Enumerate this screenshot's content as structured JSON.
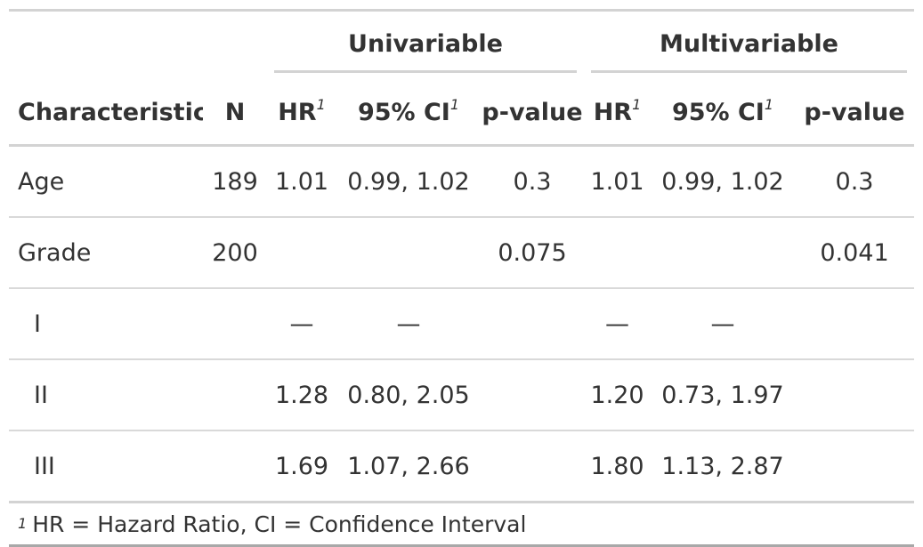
{
  "spanners": {
    "univariable": "Univariable",
    "multivariable": "Multivariable"
  },
  "columns": {
    "characteristic": "Characteristic",
    "n": "N",
    "hr": "HR",
    "ci": "95% CI",
    "pvalue": "p-value",
    "footnote_mark": "1"
  },
  "rows": [
    {
      "label": "Age",
      "n": "189",
      "uv_hr": "1.01",
      "uv_ci": "0.99, 1.02",
      "uv_p": "0.3",
      "mv_hr": "1.01",
      "mv_ci": "0.99, 1.02",
      "mv_p": "0.3"
    },
    {
      "label": "Grade",
      "n": "200",
      "uv_hr": "",
      "uv_ci": "",
      "uv_p": "0.075",
      "mv_hr": "",
      "mv_ci": "",
      "mv_p": "0.041"
    },
    {
      "label": "I",
      "n": "",
      "uv_hr": "—",
      "uv_ci": "—",
      "uv_p": "",
      "mv_hr": "—",
      "mv_ci": "—",
      "mv_p": ""
    },
    {
      "label": "II",
      "n": "",
      "uv_hr": "1.28",
      "uv_ci": "0.80, 2.05",
      "uv_p": "",
      "mv_hr": "1.20",
      "mv_ci": "0.73, 1.97",
      "mv_p": ""
    },
    {
      "label": "III",
      "n": "",
      "uv_hr": "1.69",
      "uv_ci": "1.07, 2.66",
      "uv_p": "",
      "mv_hr": "1.80",
      "mv_ci": "1.13, 2.87",
      "mv_p": ""
    }
  ],
  "footnote": {
    "mark": "1",
    "text": "HR = Hazard Ratio, CI = Confidence Interval"
  }
}
